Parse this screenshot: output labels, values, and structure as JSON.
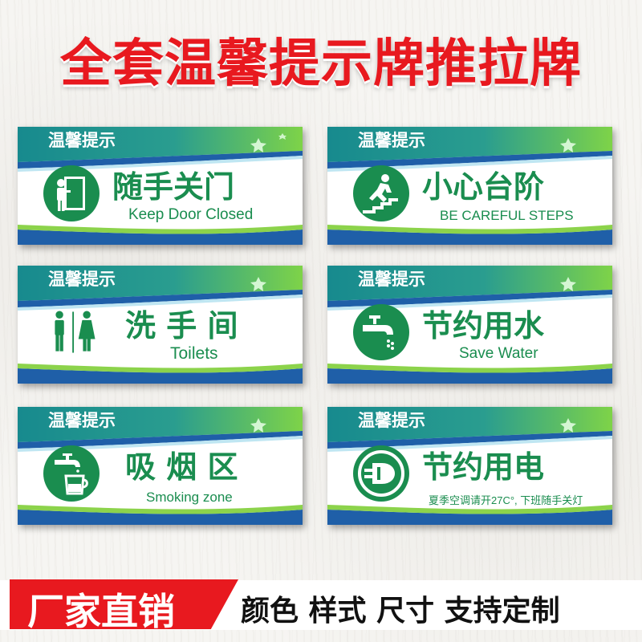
{
  "title": "全套温馨提示牌推拉牌",
  "colors": {
    "title": "#e8191f",
    "sign_green": "#1a8d4f",
    "badge": "#e8191f"
  },
  "signs": [
    {
      "tip": "温馨提示",
      "zh": "随手关门",
      "en": "Keep Door Closed",
      "icon": "door-icon"
    },
    {
      "tip": "温馨提示",
      "zh": "小心台阶",
      "en": "BE CAREFUL STEPS",
      "icon": "stairs-icon"
    },
    {
      "tip": "温馨提示",
      "zh": "洗 手 间",
      "en": "Toilets",
      "icon": "toilet-icon"
    },
    {
      "tip": "温馨提示",
      "zh": "节约用水",
      "en": "Save Water",
      "icon": "faucet-icon"
    },
    {
      "tip": "温馨提示",
      "zh": "吸 烟 区",
      "en": "Smoking zone",
      "icon": "cup-faucet-icon"
    },
    {
      "tip": "温馨提示",
      "zh": "节约用电",
      "en": "夏季空调请开27C°, 下班随手关灯",
      "icon": "plug-icon"
    }
  ],
  "footer": {
    "badge": "厂家直销",
    "custom": "颜色 样式 尺寸 支持定制"
  }
}
